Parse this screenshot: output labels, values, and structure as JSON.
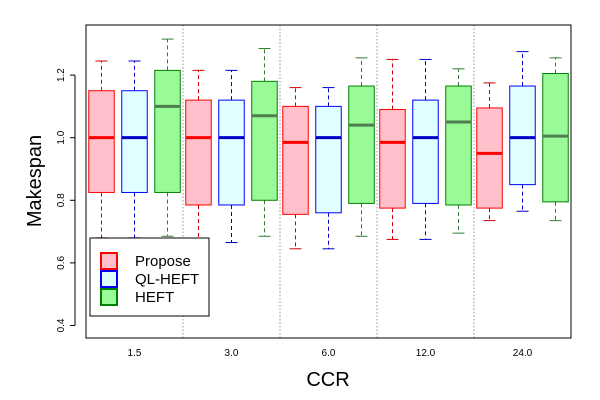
{
  "chart_data": {
    "type": "boxplot",
    "xlabel": "CCR",
    "ylabel": "Makespan",
    "ylim": [
      0.36,
      1.36
    ],
    "yticks": [
      0.4,
      0.6,
      0.8,
      1.0,
      1.2
    ],
    "ytick_labels": [
      "0.4",
      "0.6",
      "0.8",
      "1.0",
      "1.2"
    ],
    "categories": [
      "1.5",
      "3.0",
      "6.0",
      "12.0",
      "24.0"
    ],
    "grid": "dotted vertical separators between groups",
    "legend_position": "bottom-left",
    "series": [
      {
        "name": "Propose",
        "fill": "#ffc0cb",
        "stroke": "#ff0000",
        "median_color": "#ff0000",
        "whisker_color": "#cc0000",
        "boxes": [
          {
            "min": 0.68,
            "q1": 0.825,
            "median": 1.0,
            "q3": 1.15,
            "max": 1.245
          },
          {
            "min": 0.665,
            "q1": 0.785,
            "median": 1.0,
            "q3": 1.12,
            "max": 1.215
          },
          {
            "min": 0.645,
            "q1": 0.755,
            "median": 0.985,
            "q3": 1.1,
            "max": 1.16
          },
          {
            "min": 0.675,
            "q1": 0.775,
            "median": 0.985,
            "q3": 1.09,
            "max": 1.25
          },
          {
            "min": 0.735,
            "q1": 0.775,
            "median": 0.95,
            "q3": 1.095,
            "max": 1.175
          }
        ]
      },
      {
        "name": "QL-HEFT",
        "fill": "#e0ffff",
        "stroke": "#0000ff",
        "median_color": "#0000cc",
        "whisker_color": "#0000cc",
        "boxes": [
          {
            "min": 0.68,
            "q1": 0.825,
            "median": 1.0,
            "q3": 1.15,
            "max": 1.245
          },
          {
            "min": 0.665,
            "q1": 0.785,
            "median": 1.0,
            "q3": 1.12,
            "max": 1.215
          },
          {
            "min": 0.645,
            "q1": 0.76,
            "median": 1.0,
            "q3": 1.1,
            "max": 1.16
          },
          {
            "min": 0.675,
            "q1": 0.79,
            "median": 1.0,
            "q3": 1.12,
            "max": 1.25
          },
          {
            "min": 0.765,
            "q1": 0.85,
            "median": 1.0,
            "q3": 1.165,
            "max": 1.275
          }
        ]
      },
      {
        "name": "HEFT",
        "fill": "#98fb98",
        "stroke": "#008000",
        "median_color": "#4f7d4f",
        "whisker_color": "#2e7d32",
        "boxes": [
          {
            "min": 0.685,
            "q1": 0.825,
            "median": 1.1,
            "q3": 1.215,
            "max": 1.315
          },
          {
            "min": 0.685,
            "q1": 0.8,
            "median": 1.07,
            "q3": 1.18,
            "max": 1.285
          },
          {
            "min": 0.685,
            "q1": 0.79,
            "median": 1.04,
            "q3": 1.165,
            "max": 1.255
          },
          {
            "min": 0.695,
            "q1": 0.785,
            "median": 1.05,
            "q3": 1.165,
            "max": 1.22
          },
          {
            "min": 0.735,
            "q1": 0.795,
            "median": 1.005,
            "q3": 1.205,
            "max": 1.255
          }
        ]
      }
    ]
  }
}
